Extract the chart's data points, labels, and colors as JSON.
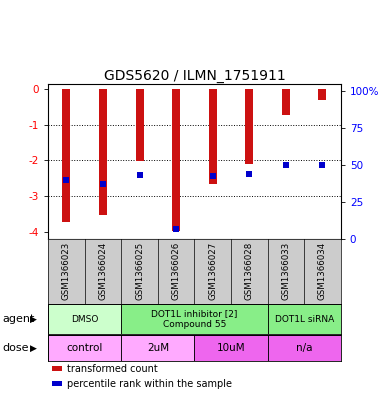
{
  "title": "GDS5620 / ILMN_1751911",
  "samples": [
    "GSM1366023",
    "GSM1366024",
    "GSM1366025",
    "GSM1366026",
    "GSM1366027",
    "GSM1366028",
    "GSM1366033",
    "GSM1366034"
  ],
  "red_values": [
    -3.72,
    -3.52,
    -2.02,
    -3.97,
    -2.65,
    -2.1,
    -0.72,
    -0.3
  ],
  "blue_values": [
    -2.55,
    -2.65,
    -2.42,
    -3.92,
    -2.45,
    -2.38,
    -2.12,
    -2.12
  ],
  "ylim_left": [
    -4.2,
    0.15
  ],
  "ylim_right": [
    0,
    105
  ],
  "yticks_left": [
    0,
    -1,
    -2,
    -3,
    -4
  ],
  "yticks_right": [
    0,
    25,
    50,
    75,
    100
  ],
  "ytick_labels_right": [
    "0",
    "25",
    "50",
    "75",
    "100%"
  ],
  "bar_color": "#cc1111",
  "dot_color": "#0000cc",
  "agent_groups": [
    {
      "label": "DMSO",
      "start": 0,
      "end": 2,
      "color": "#ccffcc"
    },
    {
      "label": "DOT1L inhibitor [2]\nCompound 55",
      "start": 2,
      "end": 6,
      "color": "#88ee88"
    },
    {
      "label": "DOT1L siRNA",
      "start": 6,
      "end": 8,
      "color": "#88ee88"
    }
  ],
  "dose_groups": [
    {
      "label": "control",
      "start": 0,
      "end": 2,
      "color": "#ffaaff"
    },
    {
      "label": "2uM",
      "start": 2,
      "end": 4,
      "color": "#ffaaff"
    },
    {
      "label": "10uM",
      "start": 4,
      "end": 6,
      "color": "#ee66ee"
    },
    {
      "label": "n/a",
      "start": 6,
      "end": 8,
      "color": "#ee66ee"
    }
  ],
  "legend_items": [
    {
      "color": "#cc1111",
      "label": "transformed count"
    },
    {
      "color": "#0000cc",
      "label": "percentile rank within the sample"
    }
  ],
  "bar_width": 0.22,
  "dot_size": 22,
  "tick_fontsize": 7.5,
  "sample_fontsize": 6.2,
  "title_fontsize": 10,
  "background_color": "#ffffff",
  "agent_label": "agent",
  "dose_label": "dose"
}
